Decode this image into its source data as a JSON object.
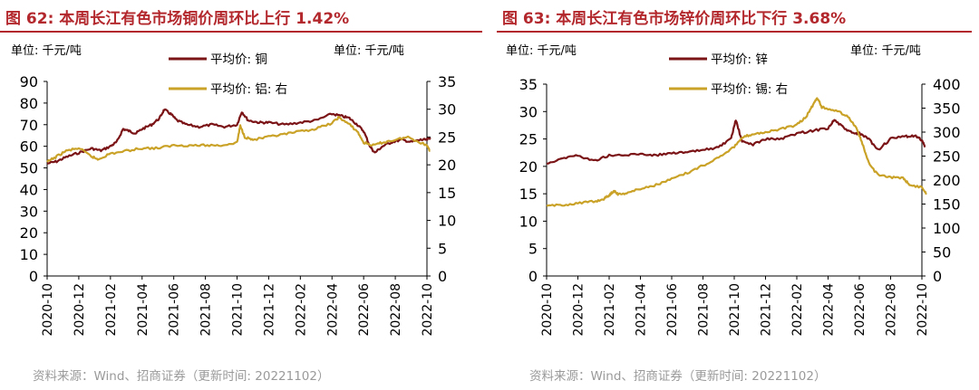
{
  "source": "资料来源：Wind、招商证券（更新时间: 20221102）",
  "chart_data": [
    {
      "type": "line",
      "title": "图 62:  本周长江有色市场铜价周环比上行 1.42%",
      "left_unit": "单位:  千元/吨",
      "right_unit": "单位:  千元/吨",
      "ylim_left": [
        0,
        90
      ],
      "ylim_right": [
        0,
        35
      ],
      "yticks_left": [
        "0",
        "10",
        "20",
        "30",
        "40",
        "50",
        "60",
        "70",
        "80",
        "90"
      ],
      "yticks_right": [
        "0",
        "5",
        "10",
        "15",
        "20",
        "25",
        "30",
        "35"
      ],
      "x_ticks": [
        "2020-10",
        "2020-12",
        "2021-02",
        "2021-04",
        "2021-06",
        "2021-08",
        "2021-10",
        "2021-12",
        "2022-02",
        "2022-04",
        "2022-06",
        "2022-08",
        "2022-10"
      ],
      "series": [
        {
          "name": "平均价: 铜",
          "axis": "left",
          "color": "#7b1416",
          "points": [
            [
              0,
              52
            ],
            [
              0.3,
              53
            ],
            [
              0.6,
              55
            ],
            [
              1,
              57
            ],
            [
              1.4,
              59
            ],
            [
              1.7,
              58
            ],
            [
              2,
              60
            ],
            [
              2.2,
              62
            ],
            [
              2.4,
              68
            ],
            [
              2.6,
              67
            ],
            [
              2.8,
              66
            ],
            [
              3,
              68
            ],
            [
              3.3,
              70
            ],
            [
              3.55,
              73
            ],
            [
              3.7,
              77
            ],
            [
              3.9,
              75
            ],
            [
              4.1,
              72
            ],
            [
              4.4,
              70
            ],
            [
              4.8,
              69
            ],
            [
              5.2,
              70
            ],
            [
              5.6,
              69
            ],
            [
              6,
              70
            ],
            [
              6.15,
              76
            ],
            [
              6.35,
              72
            ],
            [
              6.7,
              71
            ],
            [
              7,
              71
            ],
            [
              7.5,
              70
            ],
            [
              8,
              71
            ],
            [
              8.5,
              72
            ],
            [
              9,
              75
            ],
            [
              9.3,
              74
            ],
            [
              9.55,
              73
            ],
            [
              9.8,
              70
            ],
            [
              10,
              67
            ],
            [
              10.2,
              60
            ],
            [
              10.35,
              57
            ],
            [
              10.6,
              60
            ],
            [
              10.9,
              62
            ],
            [
              11.2,
              63
            ],
            [
              11.5,
              62
            ],
            [
              11.8,
              63
            ],
            [
              12,
              63
            ],
            [
              12.1,
              64
            ]
          ]
        },
        {
          "name": "平均价: 铝: 右",
          "axis": "right",
          "color": "#c9a227",
          "points": [
            [
              0,
              20.5
            ],
            [
              0.3,
              21.5
            ],
            [
              0.6,
              22.5
            ],
            [
              1,
              23
            ],
            [
              1.4,
              21.5
            ],
            [
              1.6,
              21
            ],
            [
              2,
              22
            ],
            [
              2.5,
              22.5
            ],
            [
              3,
              23
            ],
            [
              3.5,
              23
            ],
            [
              4,
              23.5
            ],
            [
              4.5,
              23.5
            ],
            [
              5,
              23.5
            ],
            [
              5.5,
              23.5
            ],
            [
              6,
              24
            ],
            [
              6.1,
              27
            ],
            [
              6.25,
              25
            ],
            [
              6.5,
              24.5
            ],
            [
              7,
              25
            ],
            [
              7.5,
              25.5
            ],
            [
              8,
              26
            ],
            [
              8.5,
              26.5
            ],
            [
              9,
              27.5
            ],
            [
              9.2,
              28.5
            ],
            [
              9.5,
              27.5
            ],
            [
              9.8,
              26
            ],
            [
              10,
              24
            ],
            [
              10.3,
              23.5
            ],
            [
              10.6,
              24
            ],
            [
              11,
              24.5
            ],
            [
              11.4,
              25
            ],
            [
              11.8,
              24
            ],
            [
              12,
              23.5
            ],
            [
              12.1,
              22.5
            ]
          ]
        }
      ]
    },
    {
      "type": "line",
      "title": "图 63:  本周长江有色市场锌价周环比下行 3.68%",
      "left_unit": "单位:  千元/吨",
      "right_unit": "单位:  千元/吨",
      "ylim_left": [
        0,
        35
      ],
      "ylim_right": [
        0,
        400
      ],
      "yticks_left": [
        "0",
        "5",
        "10",
        "15",
        "20",
        "25",
        "30",
        "35"
      ],
      "yticks_right": [
        "0",
        "50",
        "100",
        "150",
        "200",
        "250",
        "300",
        "350",
        "400"
      ],
      "x_ticks": [
        "2020-10",
        "2020-12",
        "2021-02",
        "2021-04",
        "2021-06",
        "2021-08",
        "2021-10",
        "2021-12",
        "2022-02",
        "2022-04",
        "2022-06",
        "2022-08",
        "2022-10"
      ],
      "series": [
        {
          "name": "平均价: 锌",
          "axis": "left",
          "color": "#7b1416",
          "points": [
            [
              0,
              20.5
            ],
            [
              0.5,
              21.5
            ],
            [
              1,
              22
            ],
            [
              1.5,
              21
            ],
            [
              2,
              22
            ],
            [
              2.5,
              22
            ],
            [
              3,
              22.3
            ],
            [
              3.5,
              22
            ],
            [
              4,
              22.5
            ],
            [
              4.5,
              22.5
            ],
            [
              5,
              23
            ],
            [
              5.5,
              23.5
            ],
            [
              5.9,
              25
            ],
            [
              6.05,
              28.5
            ],
            [
              6.25,
              24.5
            ],
            [
              6.6,
              24
            ],
            [
              7,
              25
            ],
            [
              7.5,
              25
            ],
            [
              8,
              26
            ],
            [
              8.5,
              26.5
            ],
            [
              9,
              27
            ],
            [
              9.2,
              28.5
            ],
            [
              9.5,
              27
            ],
            [
              9.8,
              26
            ],
            [
              10,
              26
            ],
            [
              10.3,
              25
            ],
            [
              10.6,
              23
            ],
            [
              11,
              25
            ],
            [
              11.5,
              25.5
            ],
            [
              11.8,
              25.5
            ],
            [
              12,
              24.8
            ],
            [
              12.1,
              23.5
            ]
          ]
        },
        {
          "name": "平均价: 锡: 右",
          "axis": "right",
          "color": "#c9a227",
          "points": [
            [
              0,
              146
            ],
            [
              0.5,
              148
            ],
            [
              1,
              152
            ],
            [
              1.5,
              155
            ],
            [
              1.8,
              160
            ],
            [
              2,
              168
            ],
            [
              2.15,
              178
            ],
            [
              2.3,
              170
            ],
            [
              2.6,
              174
            ],
            [
              3,
              182
            ],
            [
              3.5,
              190
            ],
            [
              4,
              202
            ],
            [
              4.5,
              215
            ],
            [
              5,
              230
            ],
            [
              5.5,
              248
            ],
            [
              6,
              270
            ],
            [
              6.3,
              290
            ],
            [
              6.6,
              296
            ],
            [
              7,
              300
            ],
            [
              7.5,
              306
            ],
            [
              8,
              315
            ],
            [
              8.3,
              332
            ],
            [
              8.5,
              355
            ],
            [
              8.65,
              372
            ],
            [
              8.8,
              352
            ],
            [
              9.2,
              345
            ],
            [
              9.6,
              335
            ],
            [
              9.9,
              310
            ],
            [
              10.1,
              275
            ],
            [
              10.3,
              235
            ],
            [
              10.6,
              210
            ],
            [
              11,
              205
            ],
            [
              11.4,
              205
            ],
            [
              11.6,
              190
            ],
            [
              12,
              185
            ],
            [
              12.15,
              172
            ]
          ]
        }
      ]
    }
  ]
}
